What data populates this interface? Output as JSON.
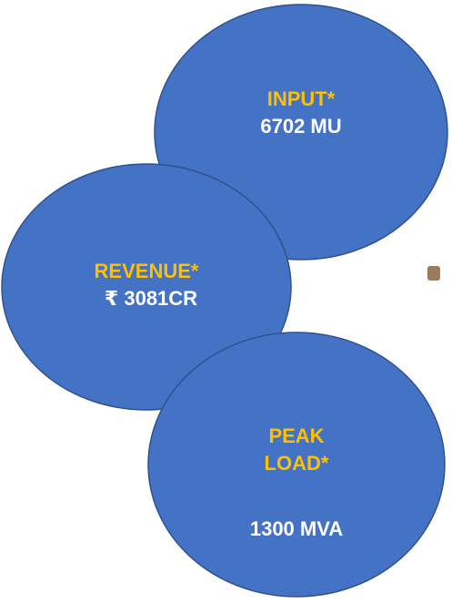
{
  "nodes": [
    {
      "label": "INPUT*",
      "value": "6702 MU"
    },
    {
      "label": "REVENUE*",
      "value": "₹ 3081CR"
    },
    {
      "label": "PEAK LOAD*",
      "value": "1300 MVA"
    }
  ]
}
